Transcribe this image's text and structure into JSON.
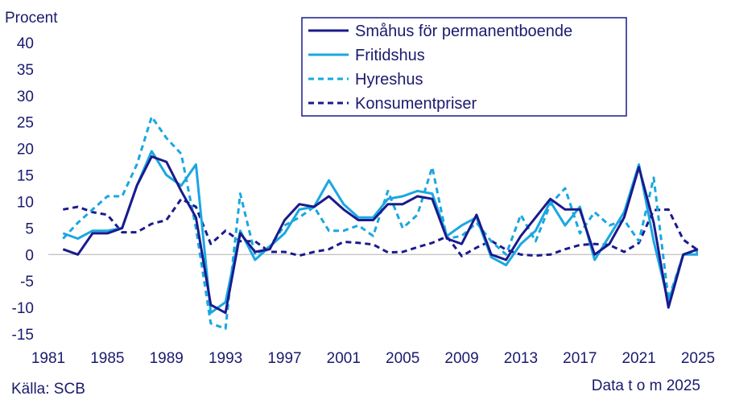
{
  "chart_data": {
    "type": "line",
    "ylabel": "Procent",
    "xlabel": "",
    "ylim": [
      -15,
      40
    ],
    "xlim": [
      1981,
      2025
    ],
    "yticks": [
      40,
      35,
      30,
      25,
      20,
      15,
      10,
      5,
      0,
      -5,
      -10,
      -15
    ],
    "xticks": [
      1981,
      1985,
      1989,
      1993,
      1997,
      2001,
      2005,
      2009,
      2013,
      2017,
      2021,
      2025
    ],
    "grid": false,
    "legend_position": "top-right",
    "x": [
      1982,
      1983,
      1984,
      1985,
      1986,
      1987,
      1988,
      1989,
      1990,
      1991,
      1992,
      1993,
      1994,
      1995,
      1996,
      1997,
      1998,
      1999,
      2000,
      2001,
      2002,
      2003,
      2004,
      2005,
      2006,
      2007,
      2008,
      2009,
      2010,
      2011,
      2012,
      2013,
      2014,
      2015,
      2016,
      2017,
      2018,
      2019,
      2020,
      2021,
      2022,
      2023,
      2024,
      2025
    ],
    "series": [
      {
        "name": "Småhus för permanentboende",
        "color": "#1a1a8c",
        "dash": "solid",
        "values": [
          1.0,
          0.0,
          4.0,
          4.0,
          5.0,
          13.0,
          18.5,
          17.5,
          12.0,
          7.0,
          -9.5,
          -11.0,
          4.0,
          0.5,
          1.0,
          6.5,
          9.5,
          9.0,
          11.0,
          8.5,
          6.5,
          6.5,
          9.5,
          9.5,
          11.0,
          10.5,
          3.0,
          2.0,
          7.5,
          0.0,
          -1.0,
          3.5,
          7.0,
          10.5,
          8.5,
          8.5,
          0.0,
          2.0,
          7.0,
          16.5,
          6.0,
          -10.0,
          0.0,
          1.0
        ]
      },
      {
        "name": "Fritidshus",
        "color": "#1aa7e0",
        "dash": "solid",
        "values": [
          4.0,
          3.0,
          4.5,
          4.5,
          5.0,
          13.0,
          19.5,
          15.0,
          13.0,
          17.0,
          -11.0,
          -9.0,
          4.5,
          -1.0,
          1.5,
          4.0,
          8.5,
          9.0,
          14.0,
          9.5,
          7.0,
          7.0,
          10.5,
          11.0,
          12.0,
          11.5,
          3.5,
          5.5,
          7.0,
          -0.5,
          -2.0,
          2.0,
          4.5,
          10.0,
          5.5,
          9.0,
          -1.0,
          3.5,
          8.0,
          17.0,
          2.5,
          -9.0,
          0.0,
          0.0
        ]
      },
      {
        "name": "Hyreshus",
        "color": "#1aa7e0",
        "dash": "dashed",
        "values": [
          3.0,
          6.0,
          8.5,
          11.0,
          11.0,
          17.0,
          26.0,
          22.0,
          19.0,
          5.0,
          -13.0,
          -14.0,
          11.5,
          0.0,
          1.5,
          5.5,
          7.0,
          9.0,
          4.5,
          4.5,
          5.5,
          3.5,
          12.0,
          5.0,
          7.5,
          16.5,
          3.0,
          3.5,
          6.0,
          2.5,
          0.0,
          7.5,
          2.5,
          9.5,
          12.5,
          4.0,
          8.0,
          5.5,
          6.5,
          2.5,
          14.5,
          -8.5,
          0.0,
          0.5
        ]
      },
      {
        "name": "Konsumentpriser",
        "color": "#1a1a8c",
        "dash": "dashed",
        "values": [
          8.5,
          9.0,
          8.0,
          7.5,
          4.2,
          4.2,
          5.8,
          6.5,
          10.5,
          9.0,
          2.0,
          4.5,
          2.5,
          2.5,
          0.5,
          0.5,
          -0.2,
          0.5,
          1.0,
          2.4,
          2.2,
          1.9,
          0.4,
          0.5,
          1.4,
          2.2,
          3.4,
          -0.3,
          1.3,
          2.6,
          0.9,
          0.0,
          -0.2,
          0.0,
          1.0,
          1.8,
          2.0,
          1.8,
          0.5,
          2.2,
          8.4,
          8.5,
          2.8,
          0.8
        ]
      }
    ]
  },
  "footer": {
    "source": "Källa: SCB",
    "data_note": "Data t o m 2025"
  }
}
